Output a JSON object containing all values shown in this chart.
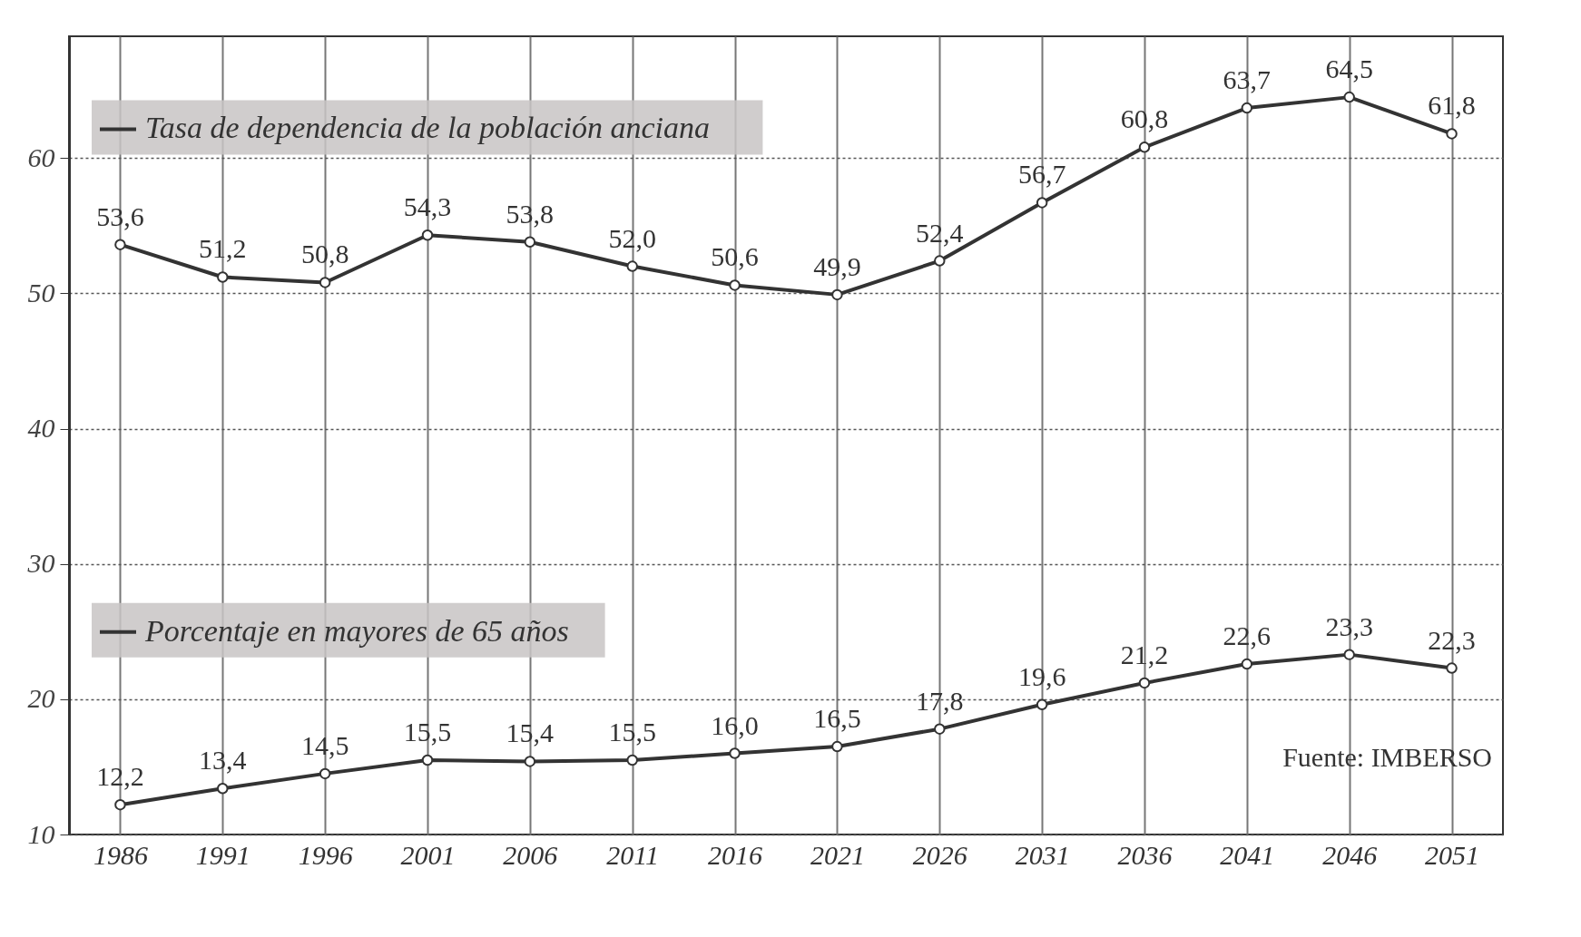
{
  "chart_data": {
    "type": "line",
    "categories": [
      "1986",
      "1991",
      "1996",
      "2001",
      "2006",
      "2011",
      "2016",
      "2021",
      "2026",
      "2031",
      "2036",
      "2041",
      "2046",
      "2051"
    ],
    "series": [
      {
        "name": "Tasa de dependencia de la población anciana",
        "color": "#333333",
        "values": [
          53.6,
          51.2,
          50.8,
          54.3,
          53.8,
          52.0,
          50.6,
          49.9,
          52.4,
          56.7,
          60.8,
          63.7,
          64.5,
          61.8
        ],
        "value_labels": [
          "53,6",
          "51,2",
          "50,8",
          "54,3",
          "53,8",
          "52,0",
          "50,6",
          "49,9",
          "52,4",
          "56,7",
          "60,8",
          "63,7",
          "64,5",
          "61,8"
        ]
      },
      {
        "name": "Porcentaje en mayores de 65 años",
        "color": "#333333",
        "values": [
          12.2,
          13.4,
          14.5,
          15.5,
          15.4,
          15.5,
          16.0,
          16.5,
          17.8,
          19.6,
          21.2,
          22.6,
          23.3,
          22.3
        ],
        "value_labels": [
          "12,2",
          "13,4",
          "14,5",
          "15,5",
          "15,4",
          "15,5",
          "16,0",
          "16,5",
          "17,8",
          "19,6",
          "21,2",
          "22,6",
          "23,3",
          "22,3"
        ]
      }
    ],
    "ylim": [
      10,
      69
    ],
    "yticks": [
      10,
      20,
      30,
      40,
      50,
      60
    ],
    "grid": true,
    "legend": "top left",
    "marker": "circle",
    "line_style": "solid",
    "annotations": [
      "Fuente: IMBERSO"
    ]
  }
}
